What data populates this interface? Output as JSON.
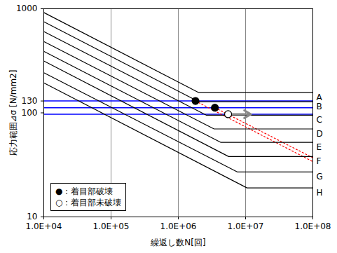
{
  "chart_data": {
    "type": "line",
    "x_label": "繰返し数N[回]",
    "y_label": "応力範囲⊿σ [N/mm2]",
    "log": true,
    "xlim": [
      10000,
      100000000
    ],
    "ylim": [
      10,
      1000
    ],
    "xticks": [
      {
        "value": 10000,
        "label": "1.0E+04"
      },
      {
        "value": 100000,
        "label": "1.0E+05"
      },
      {
        "value": 1000000,
        "label": "1.0E+06"
      },
      {
        "value": 10000000,
        "label": "1.0E+07"
      },
      {
        "value": 100000000,
        "label": "1.0E+08"
      }
    ],
    "yticks": [
      10,
      100,
      130,
      1000
    ],
    "grid": "x",
    "legend": "bottom-left",
    "series": [
      {
        "name": "A",
        "color": "#000000",
        "x": [
          10000,
          2000000,
          100000000
        ],
        "values": [
          920,
          157,
          157
        ]
      },
      {
        "name": "B",
        "color": "#000000",
        "x": [
          10000,
          2000000,
          100000000
        ],
        "values": [
          750,
          128,
          128
        ]
      },
      {
        "name": "C",
        "color": "#000000",
        "x": [
          10000,
          2600000,
          100000000
        ],
        "values": [
          605,
          95,
          95
        ]
      },
      {
        "name": "D",
        "color": "#000000",
        "x": [
          10000,
          3400000,
          100000000
        ],
        "values": [
          485,
          70,
          70
        ]
      },
      {
        "name": "E",
        "color": "#000000",
        "x": [
          10000,
          4300000,
          100000000
        ],
        "values": [
          390,
          52,
          52
        ]
      },
      {
        "name": "F",
        "color": "#000000",
        "x": [
          10000,
          5600000,
          100000000
        ],
        "values": [
          315,
          38,
          38
        ]
      },
      {
        "name": "G",
        "color": "#000000",
        "x": [
          10000,
          7600000,
          100000000
        ],
        "values": [
          243,
          27,
          27
        ]
      },
      {
        "name": "H",
        "color": "#000000",
        "x": [
          10000,
          10500000,
          100000000
        ],
        "values": [
          194,
          19,
          19
        ]
      },
      {
        "name": "●：着目部破壊",
        "type": "scatter",
        "marker": "filled",
        "color": "#000000",
        "x": [
          1800000,
          3500000
        ],
        "values": [
          130,
          112
        ]
      },
      {
        "name": "○：着目部未破壊",
        "type": "scatter",
        "marker": "open",
        "color": "#000000",
        "x": [
          5500000
        ],
        "values": [
          97
        ],
        "arrow_to": [
          12000000
        ]
      }
    ],
    "reference_lines": {
      "color": "#0000ff",
      "values": [
        130,
        112,
        97
      ]
    },
    "extensions": {
      "color": "#ff0000",
      "line_style": "dotted",
      "lines": [
        {
          "x": [
            1800000,
            100000000
          ],
          "values": [
            130,
            34
          ]
        },
        {
          "x": [
            3500000,
            100000000
          ],
          "values": [
            112,
            37
          ]
        }
      ]
    }
  }
}
